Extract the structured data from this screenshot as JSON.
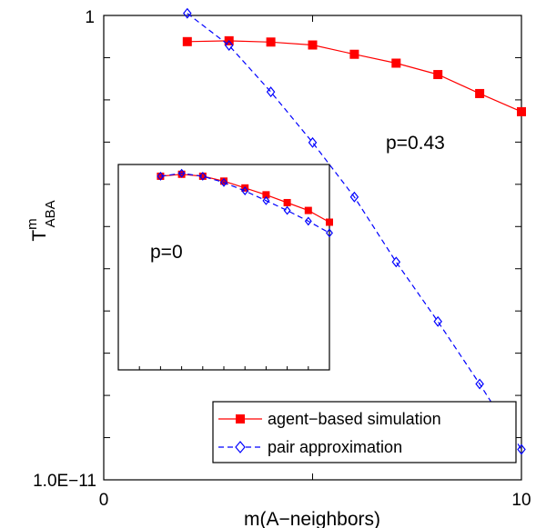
{
  "chart_data": {
    "type": "line",
    "xlabel": "m(A−neighbors)",
    "ylabel": {
      "base": "T",
      "superscript": "m",
      "subscript": "ABA"
    },
    "xlim": [
      0,
      10
    ],
    "ylim_exponent": [
      -11,
      0
    ],
    "y_scale": "log",
    "x_tick_labels": [
      "0",
      "10"
    ],
    "y_tick_labels": [
      "1.0E−11",
      "1"
    ],
    "annotation": "p=0.43",
    "legend": {
      "position": "bottom-right",
      "entries": [
        "agent−based simulation",
        "pair approximation"
      ]
    },
    "series": [
      {
        "name": "agent−based simulation",
        "color": "#ff0000",
        "marker": "filled-square",
        "line": "solid",
        "x": [
          2,
          3,
          4,
          5,
          6,
          7,
          8,
          9,
          10
        ],
        "y_exponent": [
          -0.62,
          -0.6,
          -0.63,
          -0.7,
          -0.92,
          -1.13,
          -1.4,
          -1.85,
          -2.28
        ]
      },
      {
        "name": "pair approximation",
        "color": "#0000ff",
        "marker": "open-diamond",
        "line": "dashed",
        "x": [
          2,
          3,
          4,
          5,
          6,
          7,
          8,
          9,
          10
        ],
        "y_exponent": [
          0.05,
          -0.71,
          -1.81,
          -3.01,
          -4.3,
          -5.84,
          -7.25,
          -8.73,
          -10.28
        ]
      }
    ],
    "inset": {
      "annotation": "p=0",
      "series": [
        {
          "name": "agent−based simulation",
          "color": "#ff0000",
          "marker": "filled-square",
          "line": "solid",
          "x": [
            2,
            3,
            4,
            5,
            6,
            7,
            8,
            9,
            10
          ],
          "y": [
            -0.1,
            0.0,
            -0.1,
            -0.35,
            -0.7,
            -1.05,
            -1.45,
            -1.85,
            -2.45
          ]
        },
        {
          "name": "pair approximation",
          "color": "#0000ff",
          "marker": "open-diamond",
          "line": "dashed",
          "x": [
            2,
            3,
            4,
            5,
            6,
            7,
            8,
            9,
            10
          ],
          "y": [
            -0.1,
            0.05,
            -0.1,
            -0.42,
            -0.85,
            -1.35,
            -1.85,
            -2.4,
            -3.0
          ]
        }
      ]
    }
  }
}
